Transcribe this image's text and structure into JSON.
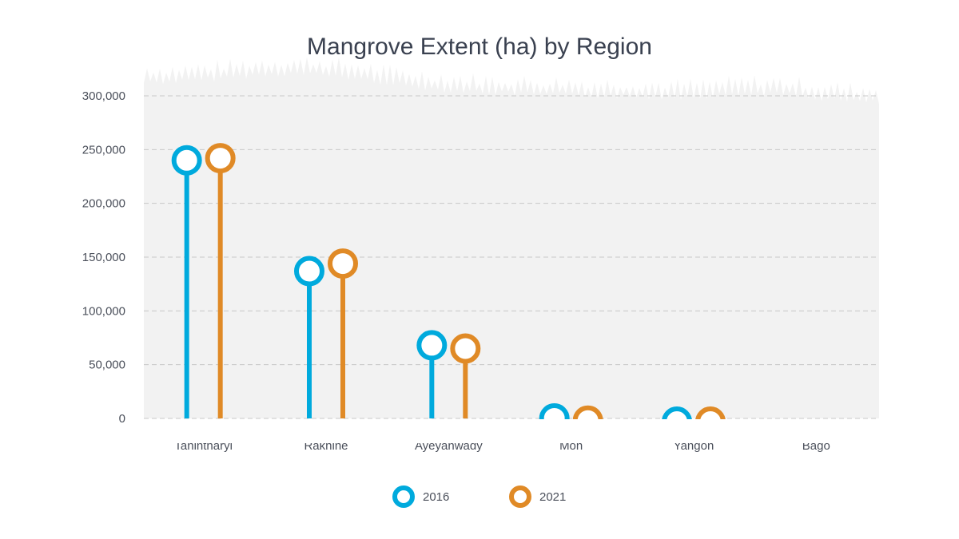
{
  "chart_data": {
    "type": "lollipop",
    "title": "Mangrove Extent (ha) by Region",
    "xlabel": "",
    "ylabel": "",
    "categories": [
      "Tanintharyi",
      "Rakhine",
      "Ayeyanwady",
      "Mon",
      "Yangon",
      "Bago"
    ],
    "series": [
      {
        "name": "2016",
        "color": "#00aadd",
        "values": [
          240000,
          137000,
          68000,
          0,
          -3000,
          null
        ]
      },
      {
        "name": "2021",
        "color": "#e08a26",
        "values": [
          242000,
          144000,
          65000,
          -2000,
          -3000,
          null
        ]
      }
    ],
    "ylim": [
      0,
      300000
    ],
    "yticks": [
      0,
      50000,
      100000,
      150000,
      200000,
      250000,
      300000
    ],
    "ytick_labels": [
      "0",
      "50,000",
      "100,000",
      "150,000",
      "200,000",
      "250,000",
      "300,000"
    ],
    "grid": true,
    "legend_position": "bottom-center",
    "background": "forest-silhouette"
  }
}
